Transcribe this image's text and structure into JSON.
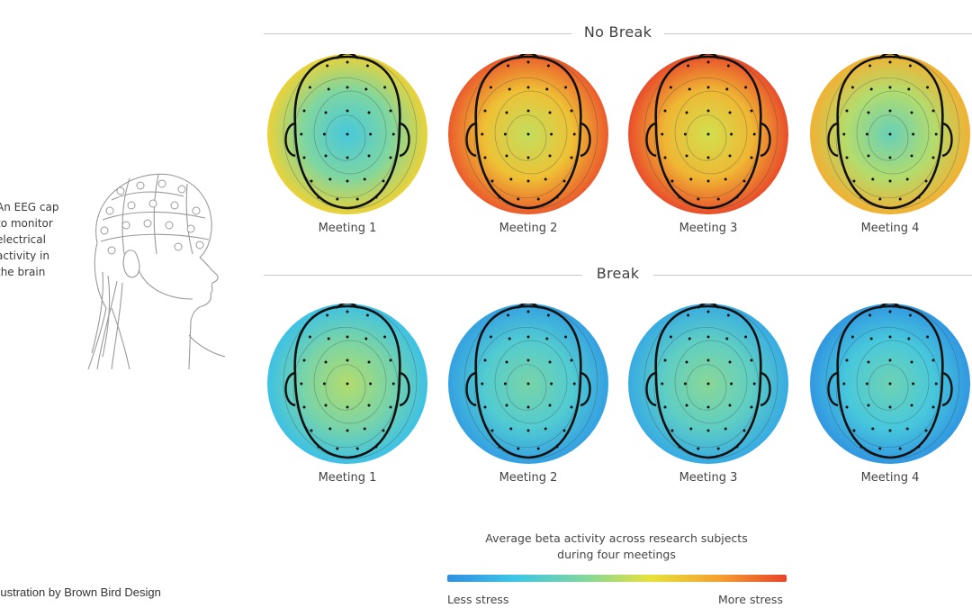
{
  "sections": [
    {
      "label": "No Break",
      "maps": [
        {
          "label": "Meeting 1",
          "level": 0.45
        },
        {
          "label": "Meeting 2",
          "level": 0.75
        },
        {
          "label": "Meeting 3",
          "level": 0.78
        },
        {
          "label": "Meeting 4",
          "level": 0.55
        }
      ]
    },
    {
      "label": "Break",
      "maps": [
        {
          "label": "Meeting 1",
          "level": 0.3
        },
        {
          "label": "Meeting 2",
          "level": 0.18
        },
        {
          "label": "Meeting 3",
          "level": 0.22
        },
        {
          "label": "Meeting 4",
          "level": 0.15
        }
      ]
    }
  ],
  "side_note": [
    "An EEG cap",
    "to monitor",
    "electrical",
    "activity in",
    "the brain"
  ],
  "credit": "Illustration by Brown Bird Design",
  "legend": {
    "title_line1": "Average beta activity across research subjects",
    "title_line2": "during four meetings",
    "low_label": "Less stress",
    "high_label": "More stress",
    "colors": [
      "#2f8fe0",
      "#3ec6e6",
      "#7fd6a0",
      "#e7e23a",
      "#f4a030",
      "#e8442a"
    ]
  }
}
